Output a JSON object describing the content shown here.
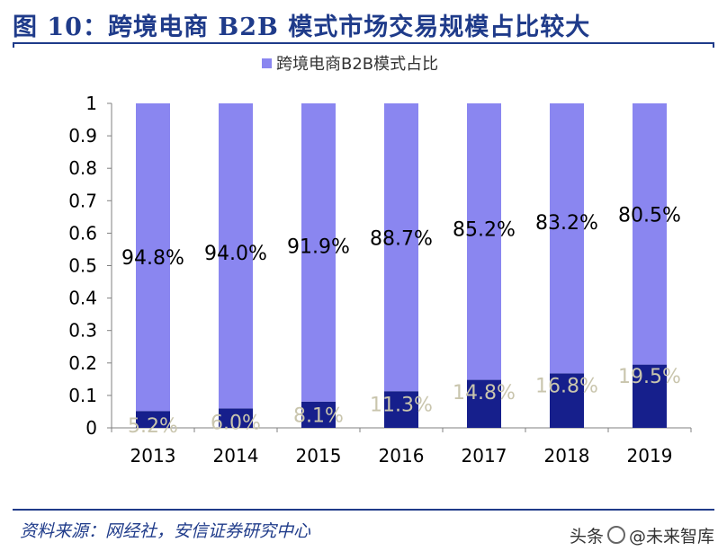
{
  "header": {
    "title": "图 10：跨境电商 B2B 模式市场交易规模占比较大"
  },
  "footer": {
    "source": "资料来源：网经社，安信证券研究中心",
    "watermark_prefix": "头条",
    "watermark_name": "@未来智库"
  },
  "colors": {
    "title_blue": "#1f3b8a",
    "b2b_series": "#8a86f0",
    "other_series": "#161f8c",
    "other_label": "#c9c5ad"
  },
  "chart_data": {
    "type": "bar",
    "stacked": true,
    "categories": [
      "2013",
      "2014",
      "2015",
      "2016",
      "2017",
      "2018",
      "2019"
    ],
    "series": [
      {
        "values": [
          0.052,
          0.06,
          0.081,
          0.113,
          0.148,
          0.168,
          0.195
        ],
        "labels": [
          "5.2%",
          "6.0%",
          "8.1%",
          "11.3%",
          "14.8%",
          "16.8%",
          "19.5%"
        ]
      },
      {
        "name": "跨境电商B2B模式占比",
        "values": [
          0.948,
          0.94,
          0.919,
          0.887,
          0.852,
          0.832,
          0.805
        ],
        "labels": [
          "94.8%",
          "94.0%",
          "91.9%",
          "88.7%",
          "85.2%",
          "83.2%",
          "80.5%"
        ]
      }
    ],
    "ylim": [
      0,
      1
    ],
    "yticks": [
      "0",
      "0.1",
      "0.2",
      "0.3",
      "0.4",
      "0.5",
      "0.6",
      "0.7",
      "0.8",
      "0.9",
      "1"
    ],
    "legend": "top-center",
    "grid": false
  }
}
